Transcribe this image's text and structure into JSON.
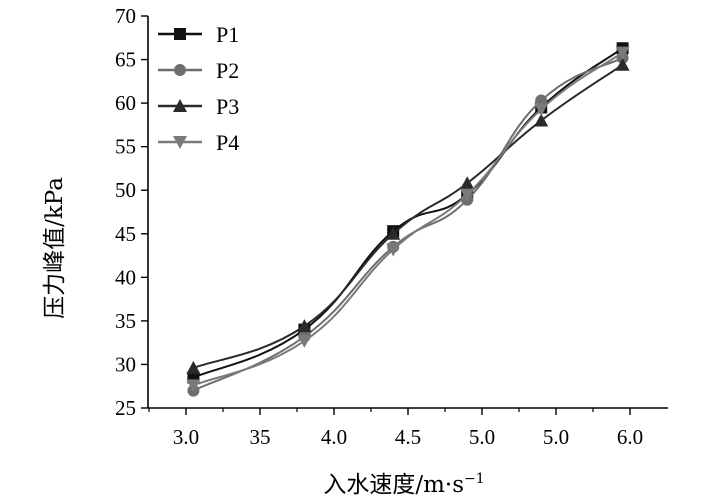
{
  "chart_data": {
    "type": "line",
    "x_tick_labels": [
      "3.0",
      "35",
      "4.0",
      "4.5",
      "5.0",
      "5.0",
      "6.0"
    ],
    "y_ticks": [
      25,
      30,
      35,
      40,
      45,
      50,
      55,
      60,
      65,
      70
    ],
    "ylim": [
      25,
      70
    ],
    "xlabel": "入水速度/m·s",
    "xlabel_sup": "−1",
    "ylabel": "压力峰值/kPa",
    "grid": false,
    "legend_position": "top-left",
    "series": [
      {
        "name": "P1",
        "marker": "square",
        "color": "#111111",
        "x": [
          3.05,
          3.8,
          4.4,
          4.9,
          5.4,
          5.95
        ],
        "values": [
          28.5,
          34.0,
          45.3,
          49.5,
          59.5,
          66.3
        ]
      },
      {
        "name": "P2",
        "marker": "circle",
        "color": "#6e6e6e",
        "x": [
          3.05,
          3.8,
          4.4,
          4.9,
          5.4,
          5.95
        ],
        "values": [
          27.0,
          33.2,
          43.5,
          48.9,
          60.3,
          65.2
        ]
      },
      {
        "name": "P3",
        "marker": "triangle-up",
        "color": "#2a2a2a",
        "x": [
          3.05,
          3.8,
          4.4,
          4.9,
          5.4,
          5.95
        ],
        "values": [
          29.6,
          34.4,
          45.0,
          50.8,
          58.0,
          64.4
        ]
      },
      {
        "name": "P4",
        "marker": "triangle-down",
        "color": "#7a7a7a",
        "x": [
          3.05,
          3.8,
          4.4,
          4.9,
          5.4,
          5.95
        ],
        "values": [
          27.6,
          32.7,
          43.2,
          49.5,
          59.3,
          65.8
        ]
      }
    ]
  }
}
